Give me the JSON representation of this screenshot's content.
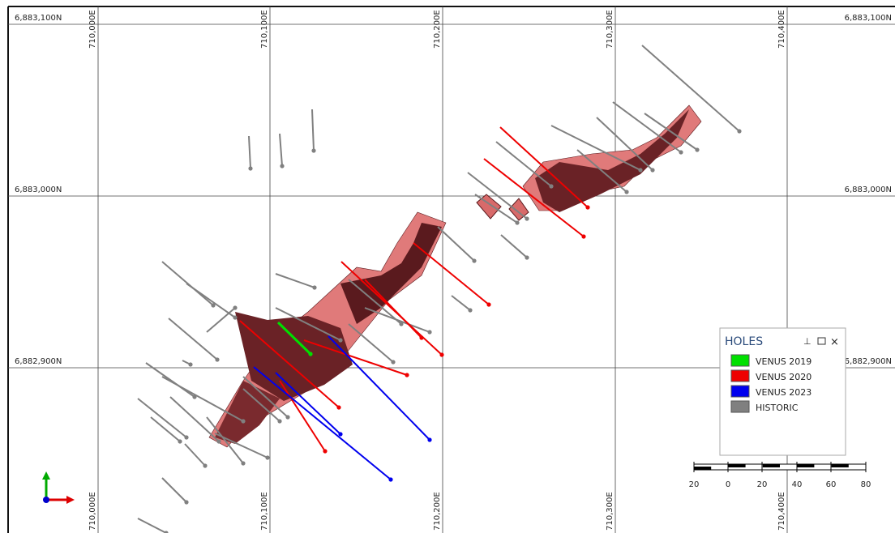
{
  "grid": {
    "northings": [
      "6,883,100N",
      "6,883,000N",
      "6,882,900N"
    ],
    "eastings": [
      "710,000E",
      "710,100E",
      "710,200E",
      "710,300E",
      "710,400E"
    ]
  },
  "legend": {
    "title": "HOLES",
    "items": [
      {
        "label": "VENUS 2019",
        "color": "#00e000"
      },
      {
        "label": "VENUS 2020",
        "color": "#ee0000"
      },
      {
        "label": "VENUS 2023",
        "color": "#0000ee"
      },
      {
        "label": "HISTORIC",
        "color": "#808080"
      }
    ]
  },
  "scale_bar": {
    "labels": [
      "20",
      "0",
      "20",
      "40",
      "60",
      "80"
    ]
  }
}
